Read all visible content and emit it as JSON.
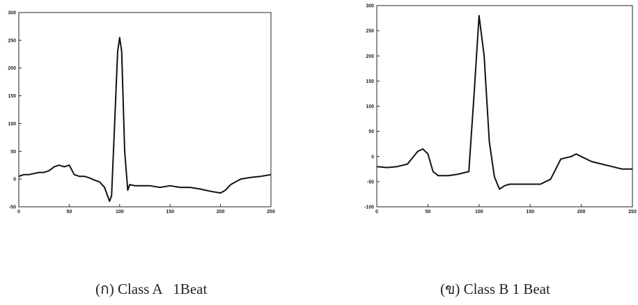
{
  "chart_data": [
    {
      "type": "line",
      "caption": "(ก) Class A   1Beat",
      "x": [
        0,
        5,
        10,
        15,
        20,
        25,
        30,
        35,
        40,
        45,
        50,
        55,
        60,
        65,
        70,
        75,
        80,
        85,
        90,
        92,
        95,
        98,
        100,
        102,
        105,
        108,
        110,
        115,
        120,
        130,
        140,
        150,
        160,
        170,
        180,
        190,
        200,
        205,
        210,
        220,
        230,
        240,
        250
      ],
      "values": [
        5,
        8,
        8,
        10,
        12,
        12,
        15,
        22,
        25,
        22,
        25,
        8,
        5,
        5,
        2,
        -2,
        -5,
        -15,
        -40,
        -30,
        100,
        230,
        255,
        230,
        50,
        -20,
        -10,
        -12,
        -12,
        -12,
        -15,
        -12,
        -15,
        -15,
        -18,
        -22,
        -25,
        -20,
        -10,
        0,
        3,
        5,
        8
      ],
      "color": "#111",
      "xlim": [
        0,
        250
      ],
      "ylim": [
        -50,
        300
      ],
      "xticks": [
        0,
        50,
        100,
        150,
        200,
        250
      ],
      "yticks": [
        -50,
        0,
        50,
        100,
        150,
        200,
        250,
        300
      ]
    },
    {
      "type": "line",
      "caption": "(ข) Class B 1 Beat",
      "x": [
        0,
        10,
        20,
        30,
        40,
        45,
        50,
        55,
        60,
        70,
        80,
        90,
        95,
        100,
        105,
        110,
        115,
        120,
        125,
        130,
        140,
        150,
        160,
        170,
        180,
        190,
        195,
        200,
        210,
        220,
        230,
        240,
        250
      ],
      "values": [
        -20,
        -22,
        -20,
        -15,
        10,
        15,
        5,
        -30,
        -38,
        -38,
        -35,
        -30,
        120,
        280,
        200,
        30,
        -40,
        -65,
        -58,
        -55,
        -55,
        -55,
        -55,
        -45,
        -5,
        0,
        5,
        0,
        -10,
        -15,
        -20,
        -25,
        -25
      ],
      "color": "#111",
      "xlim": [
        0,
        250
      ],
      "ylim": [
        -100,
        300
      ],
      "xticks": [
        0,
        50,
        100,
        150,
        200,
        250
      ],
      "yticks": [
        -100,
        -50,
        0,
        50,
        100,
        150,
        200,
        250,
        300
      ]
    }
  ]
}
